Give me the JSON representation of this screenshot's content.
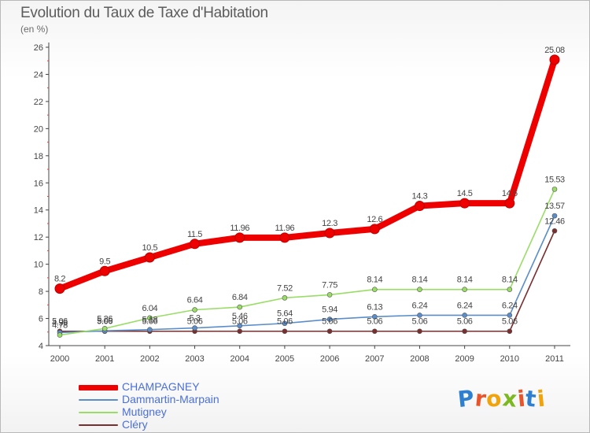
{
  "header": {
    "title": "Evolution du Taux de Taxe d'Habitation",
    "unit": "(en %)"
  },
  "logo": {
    "letters": [
      "P",
      "r",
      "o",
      "x",
      "i",
      "t",
      "i"
    ],
    "colors": [
      "#2f7fd0",
      "#e8552a",
      "#f0a30a",
      "#7cb820",
      "#e8552a",
      "#2f7fd0",
      "#f0a30a"
    ]
  },
  "chart_data": {
    "type": "line",
    "title": "Evolution du Taux de Taxe d'Habitation",
    "ylabel": "(en %)",
    "xlabel": "",
    "x": [
      "2000",
      "2001",
      "2002",
      "2003",
      "2004",
      "2005",
      "2006",
      "2007",
      "2008",
      "2009",
      "2010",
      "2011"
    ],
    "ylim": [
      4,
      26
    ],
    "yticks": [
      "4",
      "6",
      "8",
      "10",
      "12",
      "14",
      "16",
      "18",
      "20",
      "22",
      "24",
      "26"
    ],
    "grid": false,
    "legend_position": "bottom-left",
    "series": [
      {
        "name": "CHAMPAGNEY",
        "color": "#ee0000",
        "values": [
          8.2,
          9.5,
          10.5,
          11.5,
          11.96,
          11.96,
          12.3,
          12.6,
          14.3,
          14.5,
          14.5,
          25.08
        ],
        "labels": [
          "8.2",
          "9.5",
          "10.5",
          "11.5",
          "11.96",
          "11.96",
          "12.3",
          "12.6",
          "14.3",
          "14.5",
          "14.5",
          "25.08"
        ]
      },
      {
        "name": "Dammartin-Marpain",
        "color": "#5b8ec9",
        "values": [
          4.96,
          5.09,
          5.18,
          5.3,
          5.46,
          5.64,
          5.94,
          6.13,
          6.24,
          6.24,
          6.24,
          13.57
        ],
        "labels": [
          "4.96",
          "5.09",
          "5.18",
          "5.3",
          "5.46",
          "5.64",
          "5.94",
          "6.13",
          "6.24",
          "6.24",
          "6.24",
          "13.57"
        ]
      },
      {
        "name": "Mutigney",
        "color": "#99dd66",
        "values": [
          4.78,
          5.26,
          6.04,
          6.64,
          6.84,
          7.52,
          7.75,
          8.14,
          8.14,
          8.14,
          8.14,
          15.53
        ],
        "labels": [
          "4.78",
          "5.26",
          "6.04",
          "6.64",
          "6.84",
          "7.52",
          "7.75",
          "8.14",
          "8.14",
          "8.14",
          "8.14",
          "15.53"
        ]
      },
      {
        "name": "Cléry",
        "color": "#7a2e2e",
        "values": [
          5.06,
          5.06,
          5.06,
          5.06,
          5.06,
          5.06,
          5.06,
          5.06,
          5.06,
          5.06,
          5.06,
          12.46
        ],
        "labels": [
          "5.06",
          "5.06",
          "5.06",
          "5.06",
          "5.06",
          "5.06",
          "5.06",
          "5.06",
          "5.06",
          "5.06",
          "5.06",
          "12.46"
        ]
      }
    ]
  }
}
